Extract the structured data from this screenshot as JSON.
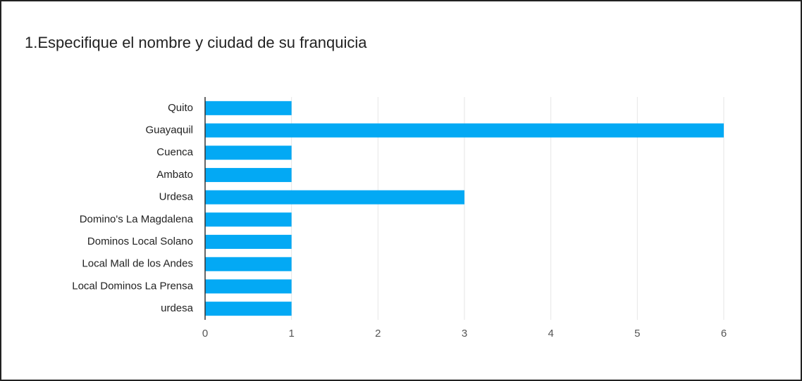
{
  "chart_data": {
    "type": "bar",
    "orientation": "horizontal",
    "title": "1.Especifique el nombre y ciudad de su franquicia",
    "categories": [
      "Quito",
      "Guayaquil",
      "Cuenca",
      "Ambato",
      "Urdesa",
      "Domino's La Magdalena",
      "Dominos Local Solano",
      "Local Mall de los Andes",
      "Local Dominos La Prensa",
      "urdesa"
    ],
    "values": [
      1,
      6,
      1,
      1,
      3,
      1,
      1,
      1,
      1,
      1
    ],
    "color": "#03a9f4",
    "xlim": [
      0,
      6
    ],
    "xticks": [
      0,
      1,
      2,
      3,
      4,
      5,
      6
    ],
    "grid": true
  }
}
